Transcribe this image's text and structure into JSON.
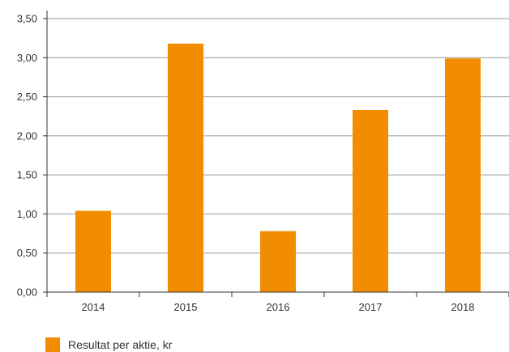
{
  "chart_data": {
    "type": "bar",
    "categories": [
      "2014",
      "2015",
      "2016",
      "2017",
      "2018"
    ],
    "series": [
      {
        "name": "Resultat per aktie, kr",
        "values": [
          1.04,
          3.18,
          0.78,
          2.33,
          2.99
        ]
      }
    ],
    "ylim": [
      0,
      3.5
    ],
    "yticks": [
      "0,00",
      "0,50",
      "1,00",
      "1,50",
      "2,00",
      "2,50",
      "3,00",
      "3,50"
    ],
    "ytick_values": [
      0,
      0.5,
      1.0,
      1.5,
      2.0,
      2.5,
      3.0,
      3.5
    ],
    "grid": true,
    "legend_position": "bottom-left",
    "title": "",
    "xlabel": "",
    "ylabel": "",
    "colors": {
      "bar": "#F28C00",
      "grid": "#999999",
      "axis": "#333333"
    }
  }
}
